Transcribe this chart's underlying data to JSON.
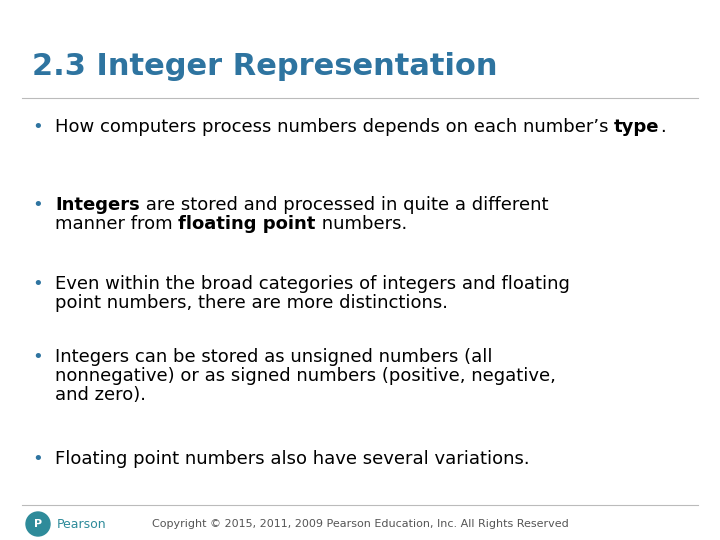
{
  "title": "2.3 Integer Representation",
  "title_color": "#2E74A0",
  "title_fontsize": 22,
  "background_color": "#FFFFFF",
  "bullet_color": "#2E74A0",
  "text_color": "#000000",
  "text_fontsize": 13,
  "line_color": "#BBBBBB",
  "footer_text": "Copyright © 2015, 2011, 2009 Pearson Education, Inc. All Rights Reserved",
  "footer_fontsize": 8,
  "footer_color": "#555555",
  "pearson_color": "#2E8B9A",
  "bullets": [
    {
      "lines": [
        [
          {
            "text": "How computers process numbers depends on each number’s ",
            "bold": false
          },
          {
            "text": "type",
            "bold": true
          },
          {
            "text": ".",
            "bold": false
          }
        ],
        [
          {
            "text": "",
            "bold": false
          }
        ]
      ]
    },
    {
      "lines": [
        [
          {
            "text": "Integers",
            "bold": true
          },
          {
            "text": " are stored and processed in quite a different",
            "bold": false
          }
        ],
        [
          {
            "text": "manner from ",
            "bold": false
          },
          {
            "text": "floating point",
            "bold": true
          },
          {
            "text": " numbers.",
            "bold": false
          }
        ]
      ]
    },
    {
      "lines": [
        [
          {
            "text": "Even within the broad categories of integers and floating",
            "bold": false
          }
        ],
        [
          {
            "text": "point numbers, there are more distinctions.",
            "bold": false
          }
        ]
      ]
    },
    {
      "lines": [
        [
          {
            "text": "Integers can be stored as unsigned numbers (all",
            "bold": false
          }
        ],
        [
          {
            "text": "nonnegative) or as signed numbers (positive, negative,",
            "bold": false
          }
        ],
        [
          {
            "text": "and zero).",
            "bold": false
          }
        ]
      ]
    },
    {
      "lines": [
        [
          {
            "text": "Floating point numbers also have several variations.",
            "bold": false
          }
        ]
      ]
    }
  ]
}
